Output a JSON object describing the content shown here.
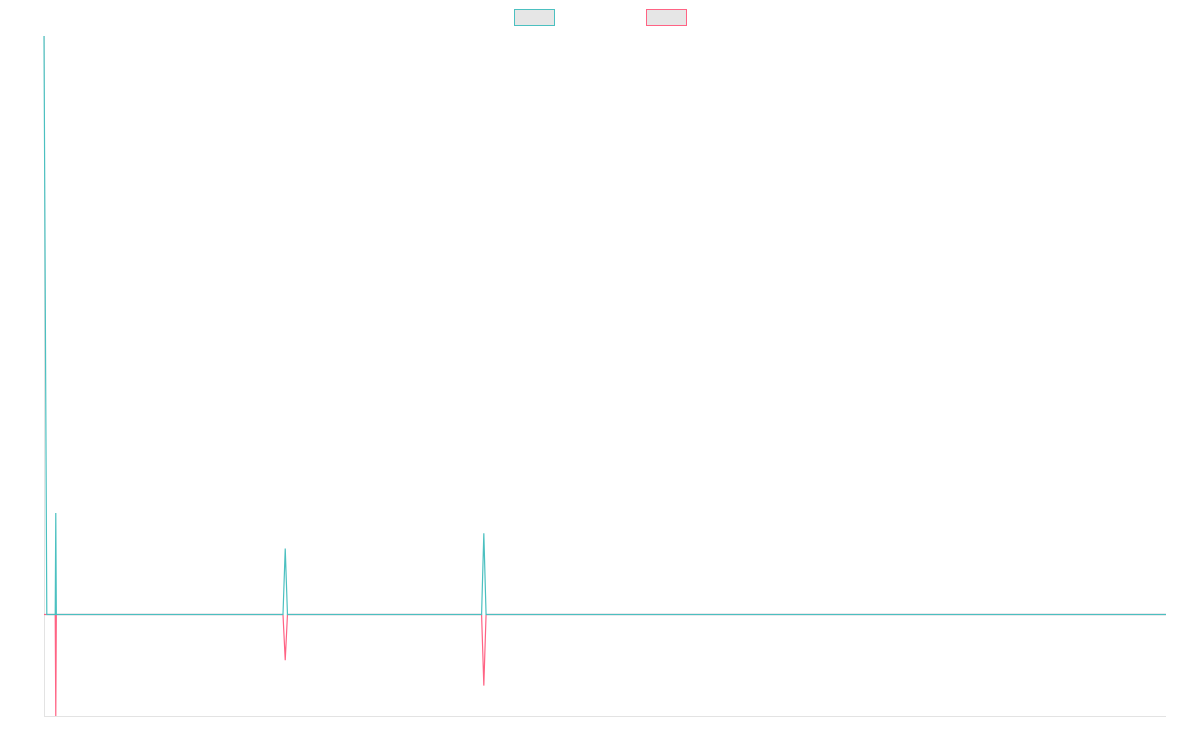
{
  "chart_data": {
    "type": "line",
    "title": "",
    "xlabel": "",
    "ylabel": "",
    "grid": false,
    "legend": "top-center",
    "xlim": [
      0,
      100
    ],
    "ylim": [
      -10,
      57
    ],
    "series": [
      {
        "color": "#4bc0c0",
        "fill": "#e6e6e6",
        "points": [
          [
            0,
            57
          ],
          [
            0.25,
            0
          ],
          [
            1.0,
            0
          ],
          [
            1.05,
            10
          ],
          [
            1.1,
            0
          ],
          [
            21.3,
            0
          ],
          [
            21.5,
            6.5
          ],
          [
            21.7,
            0
          ],
          [
            39.0,
            0
          ],
          [
            39.2,
            8
          ],
          [
            39.4,
            0
          ],
          [
            100,
            0
          ]
        ]
      },
      {
        "color": "#ff6384",
        "fill": "#e6e6e6",
        "points": [
          [
            0,
            0
          ],
          [
            1.0,
            0
          ],
          [
            1.05,
            -10
          ],
          [
            1.1,
            0
          ],
          [
            21.3,
            0
          ],
          [
            21.5,
            -4.5
          ],
          [
            21.7,
            0
          ],
          [
            39.0,
            0
          ],
          [
            39.2,
            -7
          ],
          [
            39.4,
            0
          ],
          [
            100,
            0
          ]
        ]
      }
    ]
  }
}
